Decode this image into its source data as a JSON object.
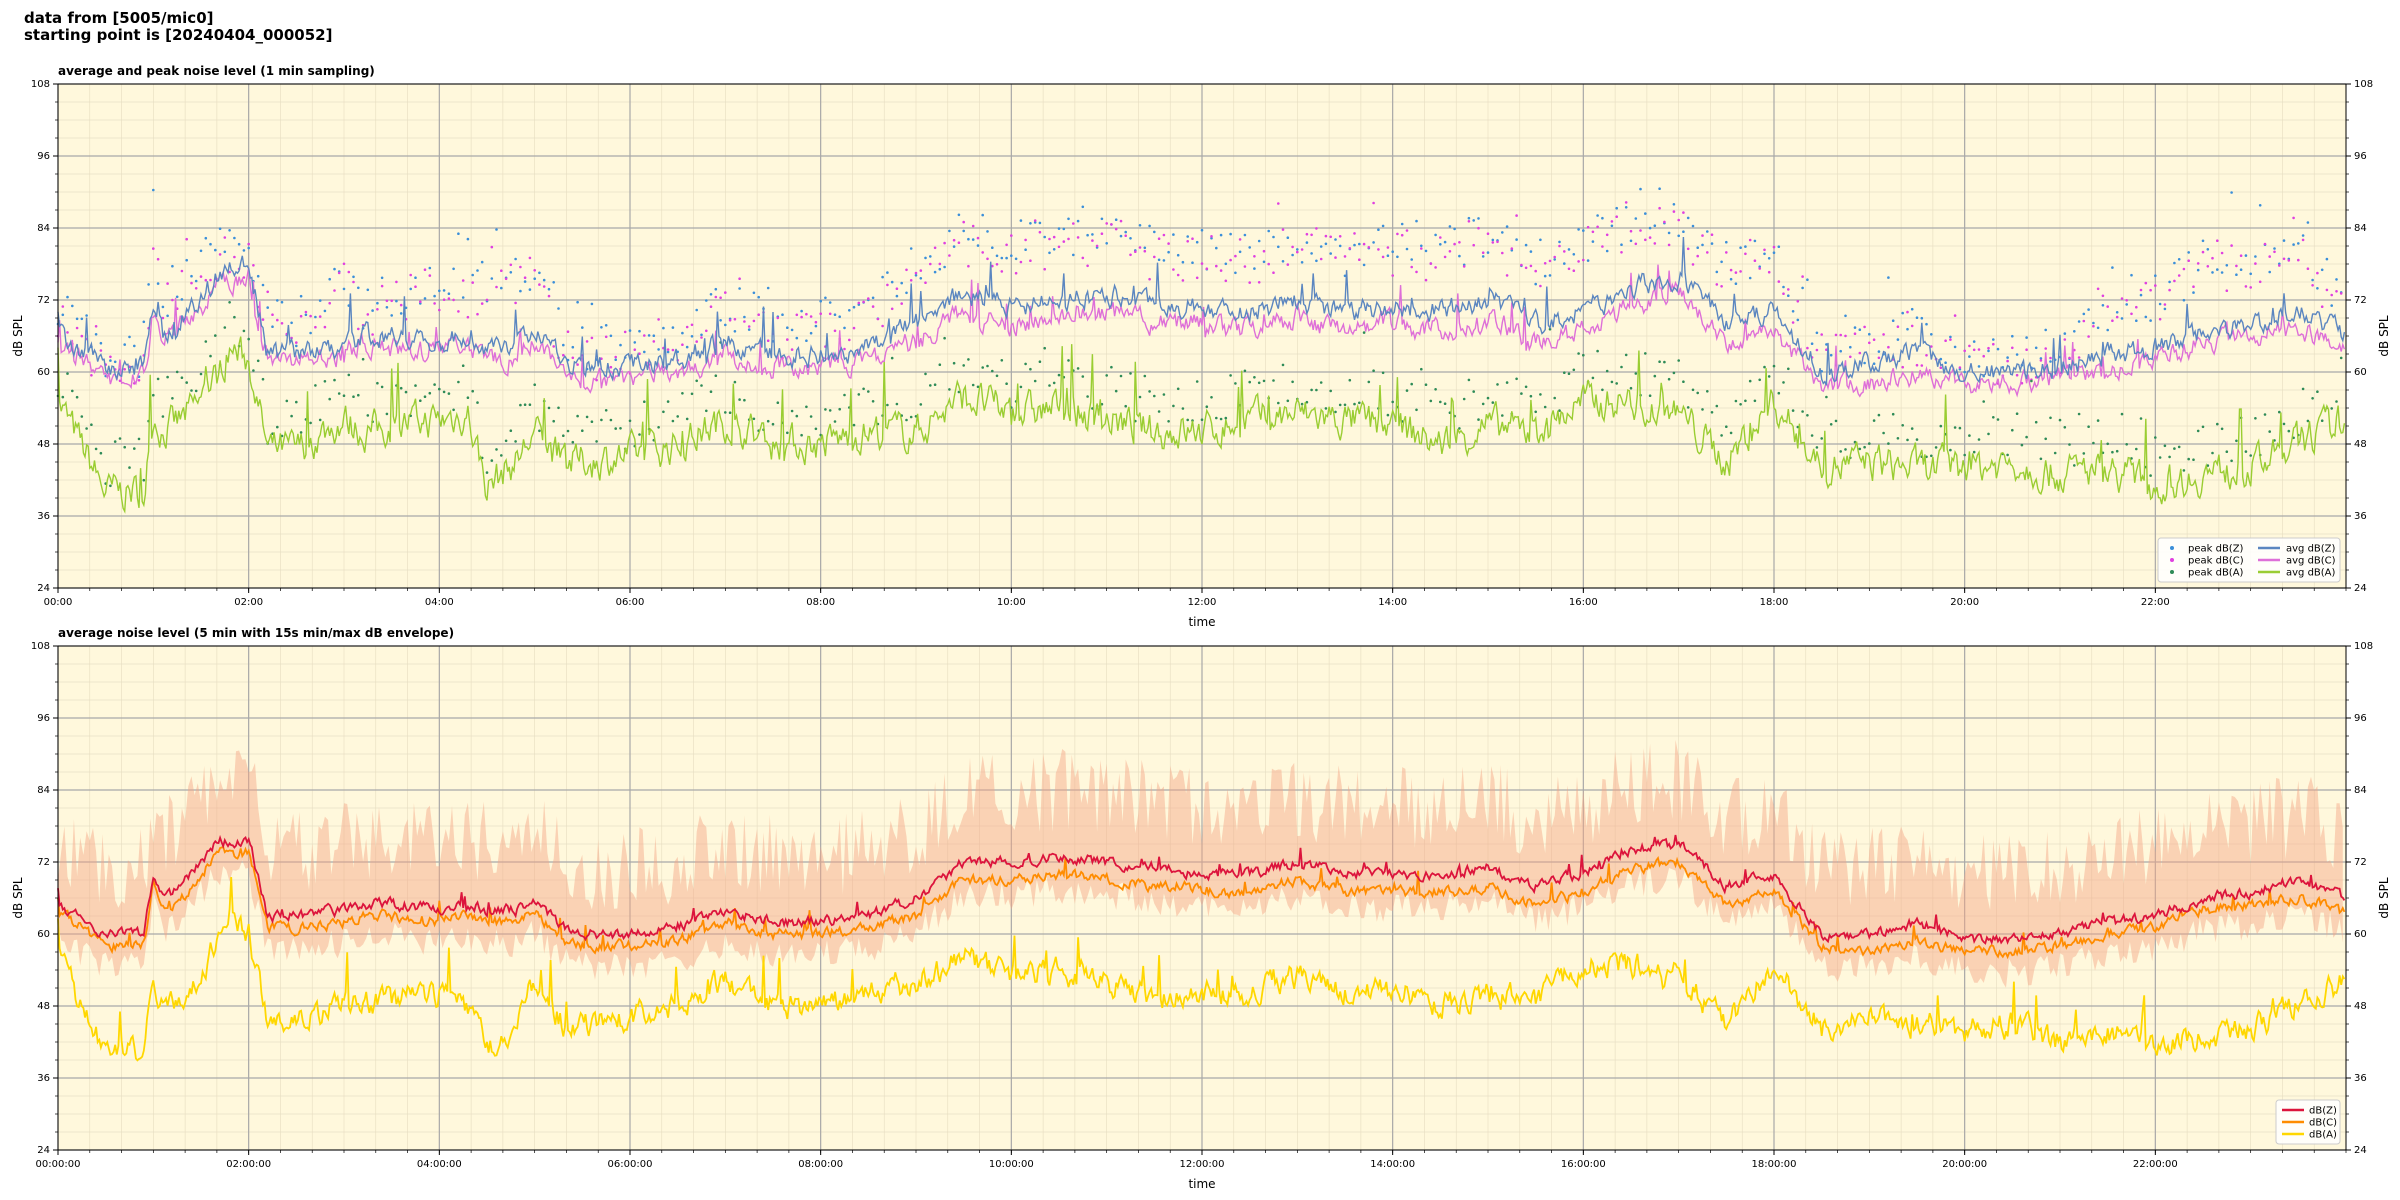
{
  "header": {
    "line1": "data from [5005/mic0]",
    "line2": "starting point is [20240404_000052]"
  },
  "colors": {
    "plot_bg": "#fff8dc",
    "peak_z": "#3b8fd9",
    "peak_c": "#e040e0",
    "peak_a": "#2e8b57",
    "avg_z": "#5b86c0",
    "avg_c": "#de6fd8",
    "avg_a": "#9acd32",
    "db_z": "#dc143c",
    "db_c": "#ff8c00",
    "db_a": "#ffd700",
    "envelope": "#f4a582"
  },
  "chart_data": [
    {
      "type": "line",
      "title": "average and peak noise level (1 min sampling)",
      "xlabel": "time",
      "ylabel": "dB SPL",
      "xlim_hours": [
        0,
        24
      ],
      "ylim": [
        24,
        108
      ],
      "xticks": [
        "00:00",
        "02:00",
        "04:00",
        "06:00",
        "08:00",
        "10:00",
        "12:00",
        "14:00",
        "16:00",
        "18:00",
        "20:00",
        "22:00"
      ],
      "yticks": [
        24,
        36,
        48,
        60,
        72,
        84,
        96,
        108
      ],
      "grid": true,
      "legend_position": "lower-right",
      "legend": [
        "peak dB(Z)",
        "peak dB(C)",
        "peak dB(A)",
        "avg dB(Z)",
        "avg dB(C)",
        "avg dB(A)"
      ],
      "x_hours": [
        0,
        0.5,
        0.9,
        1.0,
        1.1,
        1.3,
        1.5,
        1.7,
        1.8,
        2.0,
        2.2,
        2.5,
        3.0,
        3.2,
        3.5,
        4.0,
        4.3,
        4.5,
        4.8,
        5.0,
        5.3,
        5.5,
        6.0,
        6.5,
        7.0,
        7.5,
        8.0,
        8.5,
        9.0,
        9.5,
        10.0,
        10.5,
        11.0,
        11.5,
        12.0,
        12.5,
        13.0,
        13.5,
        14.0,
        14.5,
        15.0,
        15.5,
        16.0,
        16.5,
        17.0,
        17.5,
        18.0,
        18.5,
        19.0,
        19.5,
        20.0,
        20.5,
        21.0,
        21.5,
        22.0,
        22.5,
        23.0,
        23.5,
        24.0
      ],
      "series": [
        {
          "name": "avg dB(Z)",
          "values": [
            66,
            61,
            61,
            72,
            66,
            69,
            72,
            77,
            77,
            78,
            63,
            63,
            64,
            66,
            66,
            65,
            66,
            64,
            64,
            67,
            62,
            61,
            61,
            62,
            65,
            63,
            63,
            64,
            68,
            73,
            71,
            72,
            73,
            71,
            71,
            70,
            72,
            70,
            71,
            70,
            72,
            68,
            70,
            74,
            76,
            68,
            70,
            60,
            61,
            63,
            60,
            60,
            61,
            63,
            64,
            67,
            68,
            70,
            66
          ]
        },
        {
          "name": "avg dB(C)",
          "values": [
            65,
            59,
            59,
            70,
            65,
            68,
            71,
            75,
            75,
            76,
            62,
            62,
            63,
            65,
            64,
            63,
            64,
            62,
            62,
            65,
            60,
            59,
            59,
            60,
            63,
            61,
            61,
            62,
            65,
            70,
            68,
            69,
            70,
            68,
            68,
            67,
            69,
            67,
            68,
            67,
            69,
            65,
            67,
            71,
            73,
            65,
            67,
            58,
            58,
            60,
            58,
            58,
            59,
            60,
            62,
            65,
            66,
            67,
            64
          ]
        },
        {
          "name": "avg dB(A)",
          "values": [
            55,
            40,
            40,
            53,
            50,
            52,
            55,
            60,
            64,
            62,
            47,
            47,
            52,
            50,
            51,
            52,
            53,
            41,
            45,
            50,
            45,
            45,
            46,
            48,
            52,
            48,
            48,
            50,
            50,
            56,
            53,
            54,
            52,
            50,
            50,
            52,
            53,
            52,
            51,
            48,
            51,
            50,
            55,
            55,
            53,
            45,
            55,
            44,
            45,
            44,
            44,
            45,
            43,
            44,
            41,
            43,
            44,
            48,
            52
          ]
        },
        {
          "name": "peak dB(Z)",
          "values": [
            72,
            62,
            62,
            80,
            72,
            75,
            79,
            80,
            80,
            80,
            68,
            68,
            76,
            70,
            73,
            74,
            74,
            75,
            75,
            76,
            65,
            64,
            65,
            66,
            71,
            68,
            69,
            70,
            78,
            83,
            82,
            83,
            84,
            80,
            80,
            79,
            82,
            80,
            81,
            80,
            83,
            78,
            82,
            85,
            85,
            78,
            80,
            64,
            65,
            67,
            63,
            63,
            65,
            70,
            72,
            78,
            79,
            80,
            72
          ]
        },
        {
          "name": "peak dB(C)",
          "values": [
            70,
            60,
            60,
            79,
            70,
            73,
            78,
            79,
            79,
            79,
            66,
            66,
            75,
            68,
            72,
            73,
            73,
            74,
            74,
            75,
            63,
            62,
            63,
            64,
            70,
            66,
            67,
            68,
            76,
            81,
            80,
            81,
            82,
            79,
            79,
            78,
            81,
            79,
            80,
            79,
            82,
            77,
            81,
            84,
            84,
            77,
            79,
            62,
            63,
            65,
            61,
            61,
            63,
            69,
            71,
            77,
            78,
            79,
            70
          ]
        },
        {
          "name": "peak dB(A)",
          "values": [
            60,
            45,
            45,
            58,
            55,
            57,
            60,
            65,
            68,
            66,
            52,
            52,
            57,
            55,
            56,
            57,
            58,
            46,
            50,
            55,
            50,
            50,
            51,
            53,
            57,
            53,
            53,
            55,
            55,
            61,
            58,
            59,
            57,
            55,
            55,
            57,
            58,
            57,
            56,
            53,
            56,
            55,
            60,
            60,
            58,
            50,
            60,
            49,
            50,
            49,
            49,
            50,
            48,
            49,
            46,
            48,
            49,
            53,
            57
          ]
        }
      ]
    },
    {
      "type": "line",
      "title": "average noise level (5 min with 15s min/max dB envelope)",
      "xlabel": "time",
      "ylabel": "dB SPL",
      "xlim_hours": [
        0,
        24
      ],
      "ylim": [
        24,
        108
      ],
      "xticks": [
        "00:00:00",
        "02:00:00",
        "04:00:00",
        "06:00:00",
        "08:00:00",
        "10:00:00",
        "12:00:00",
        "14:00:00",
        "16:00:00",
        "18:00:00",
        "20:00:00",
        "22:00:00"
      ],
      "yticks": [
        24,
        36,
        48,
        60,
        72,
        84,
        96,
        108
      ],
      "grid": true,
      "legend_position": "lower-right",
      "legend": [
        "dB(Z)",
        "dB(C)",
        "dB(A)"
      ],
      "x_hours": [
        0,
        0.5,
        0.9,
        1.0,
        1.1,
        1.3,
        1.5,
        1.7,
        1.8,
        2.0,
        2.2,
        2.5,
        3.0,
        3.2,
        3.5,
        4.0,
        4.3,
        4.5,
        4.8,
        5.0,
        5.3,
        5.5,
        6.0,
        6.5,
        7.0,
        7.5,
        8.0,
        8.5,
        9.0,
        9.5,
        10.0,
        10.5,
        11.0,
        11.5,
        12.0,
        12.5,
        13.0,
        13.5,
        14.0,
        14.5,
        15.0,
        15.5,
        16.0,
        16.5,
        17.0,
        17.5,
        18.0,
        18.5,
        19.0,
        19.5,
        20.0,
        20.5,
        21.0,
        21.5,
        22.0,
        22.5,
        23.0,
        23.5,
        24.0
      ],
      "series": [
        {
          "name": "dB(Z)",
          "values": [
            65,
            60,
            60,
            70,
            66,
            68,
            72,
            76,
            75,
            76,
            63,
            63,
            64,
            65,
            65,
            64,
            65,
            64,
            64,
            66,
            61,
            60,
            60,
            61,
            64,
            62,
            62,
            63,
            66,
            72,
            72,
            73,
            72,
            71,
            70,
            70,
            72,
            70,
            70,
            70,
            71,
            68,
            70,
            74,
            75,
            68,
            70,
            60,
            60,
            62,
            59,
            59,
            60,
            62,
            63,
            66,
            67,
            69,
            66
          ]
        },
        {
          "name": "dB(C)",
          "values": [
            64,
            58,
            58,
            68,
            64,
            66,
            70,
            74,
            73,
            74,
            61,
            61,
            62,
            63,
            63,
            62,
            63,
            62,
            62,
            64,
            59,
            58,
            58,
            59,
            62,
            60,
            60,
            61,
            63,
            69,
            69,
            70,
            69,
            68,
            67,
            67,
            69,
            67,
            67,
            67,
            68,
            65,
            67,
            71,
            72,
            65,
            67,
            58,
            57,
            59,
            57,
            57,
            58,
            60,
            61,
            64,
            65,
            66,
            64
          ]
        },
        {
          "name": "dB(A)",
          "values": [
            56,
            40,
            40,
            52,
            48,
            50,
            52,
            60,
            64,
            60,
            46,
            46,
            48,
            49,
            49,
            50,
            48,
            41,
            45,
            52,
            45,
            45,
            46,
            48,
            52,
            48,
            48,
            50,
            52,
            56,
            53,
            54,
            52,
            49,
            50,
            50,
            53,
            50,
            51,
            48,
            50,
            49,
            55,
            55,
            53,
            45,
            55,
            44,
            46,
            45,
            44,
            45,
            42,
            44,
            41,
            43,
            44,
            48,
            52
          ]
        }
      ]
    }
  ]
}
